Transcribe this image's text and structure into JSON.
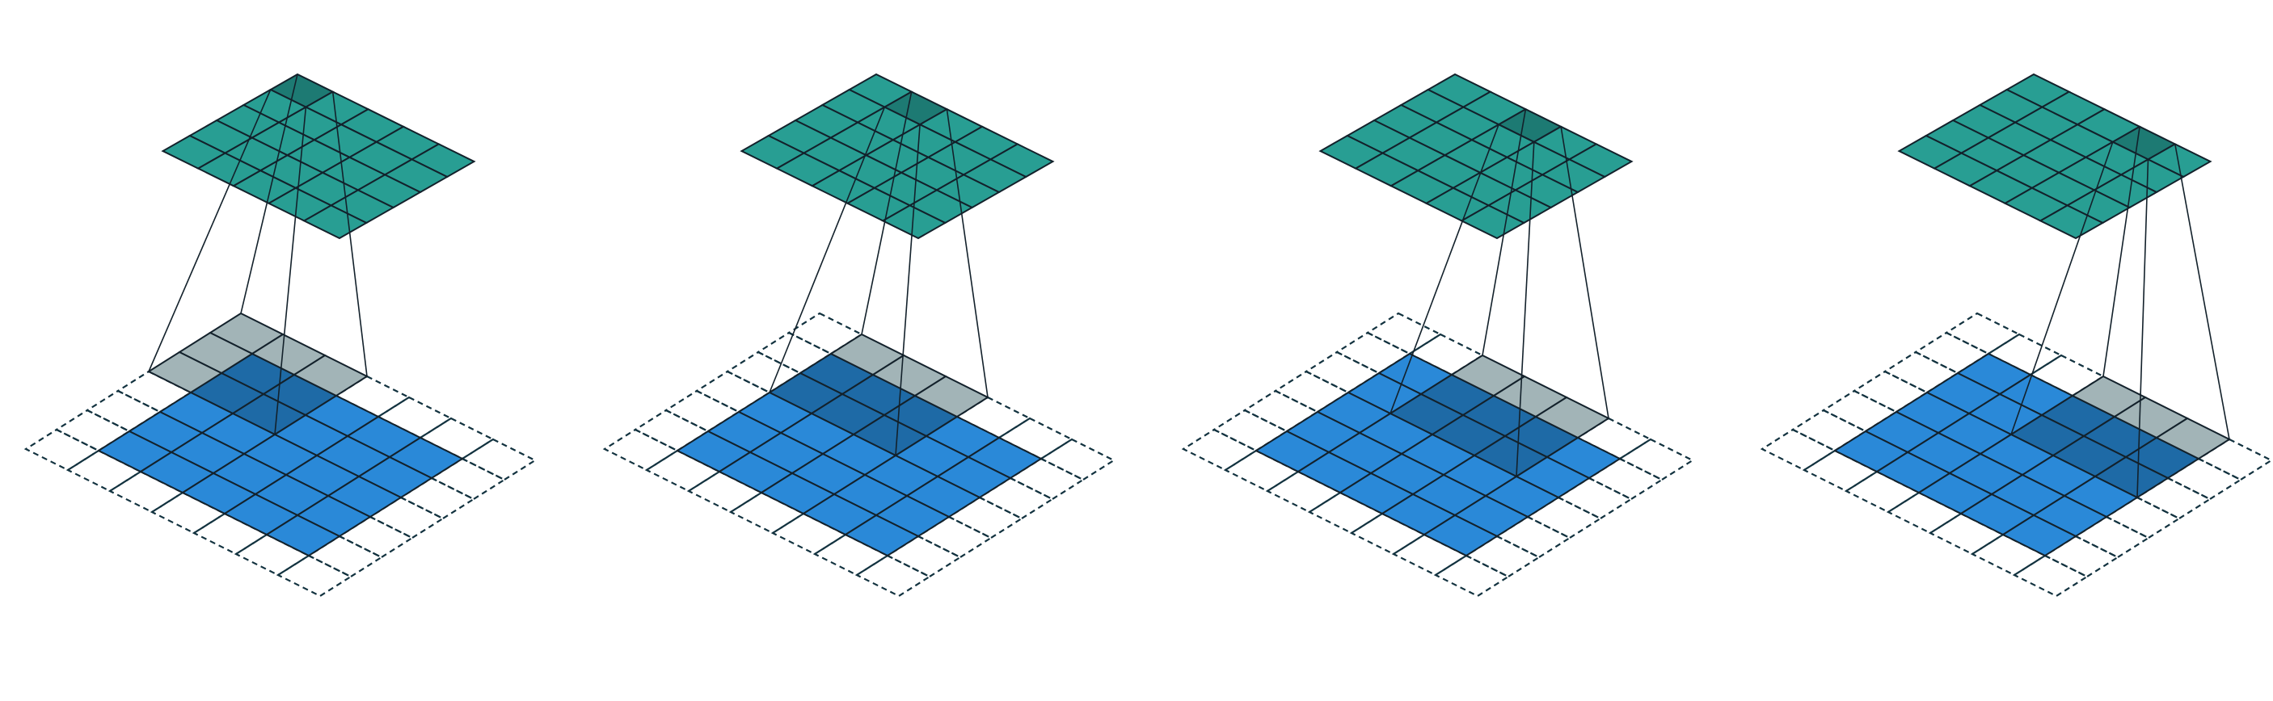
{
  "colors": {
    "background": "#ffffff",
    "input": "#2a89d8",
    "input_under_kernel": "#1e6aa6",
    "kernel_overhang": "#a2b4b7",
    "output": "#289e93",
    "output_active": "#1d7a73",
    "grid_line": "#13212b",
    "padding_dash": "#12323f"
  },
  "diagram": {
    "input_size": 5,
    "padding": 1,
    "kernel_size": 3,
    "stride": 1,
    "output_size": 5,
    "steps": [
      {
        "kernel_row": 0,
        "kernel_col": 0,
        "output_row": 0,
        "output_col": 0
      },
      {
        "kernel_row": 0,
        "kernel_col": 1,
        "output_row": 0,
        "output_col": 1
      },
      {
        "kernel_row": 0,
        "kernel_col": 2,
        "output_row": 0,
        "output_col": 2
      },
      {
        "kernel_row": 0,
        "kernel_col": 3,
        "output_row": 0,
        "output_col": 3
      }
    ]
  }
}
